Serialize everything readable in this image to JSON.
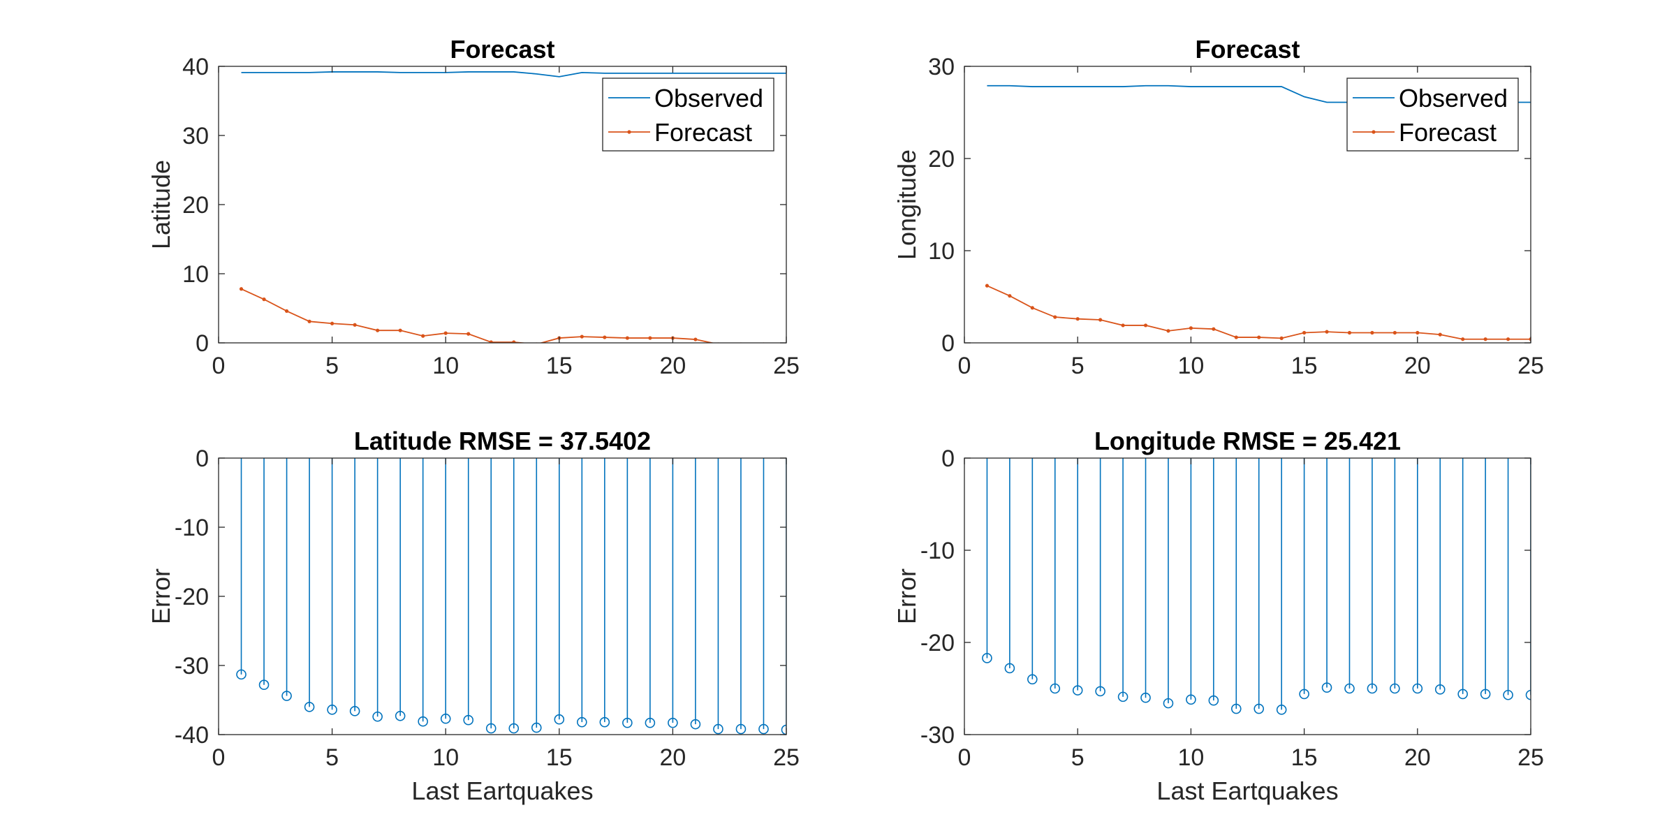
{
  "colors": {
    "observed": "#0072BD",
    "forecast": "#D95319",
    "axes": "#262626",
    "background": "#ffffff"
  },
  "chart_data": [
    {
      "type": "line",
      "title": "Forecast",
      "xlabel": "",
      "ylabel": "Latitude",
      "xlim": [
        0,
        25
      ],
      "ylim": [
        0,
        40
      ],
      "xticks": [
        0,
        5,
        10,
        15,
        20,
        25
      ],
      "yticks": [
        0,
        10,
        20,
        30,
        40
      ],
      "grid": false,
      "legend": {
        "placement": "top-right",
        "entries": [
          "Observed",
          "Forecast"
        ]
      },
      "x": [
        1,
        2,
        3,
        4,
        5,
        6,
        7,
        8,
        9,
        10,
        11,
        12,
        13,
        14,
        15,
        16,
        17,
        18,
        19,
        20,
        21,
        22,
        23,
        24,
        25
      ],
      "series": [
        {
          "name": "Observed",
          "style": "line",
          "values": [
            39.1,
            39.1,
            39.1,
            39.1,
            39.2,
            39.2,
            39.2,
            39.1,
            39.1,
            39.1,
            39.2,
            39.2,
            39.2,
            38.9,
            38.5,
            39.1,
            39.0,
            39.0,
            39.0,
            39.0,
            39.0,
            39.0,
            39.0,
            39.0,
            39.0
          ]
        },
        {
          "name": "Forecast",
          "style": "line-dot",
          "values": [
            7.8,
            6.3,
            4.6,
            3.1,
            2.8,
            2.6,
            1.8,
            1.8,
            1.0,
            1.4,
            1.3,
            0.1,
            0.1,
            -0.2,
            0.7,
            0.9,
            0.8,
            0.7,
            0.7,
            0.7,
            0.5,
            -0.2,
            -0.2,
            -0.2,
            -0.3
          ]
        }
      ]
    },
    {
      "type": "line",
      "title": "Forecast",
      "xlabel": "",
      "ylabel": "Longitude",
      "xlim": [
        0,
        25
      ],
      "ylim": [
        0,
        30
      ],
      "xticks": [
        0,
        5,
        10,
        15,
        20,
        25
      ],
      "yticks": [
        0,
        10,
        20,
        30
      ],
      "grid": false,
      "legend": {
        "placement": "top-right",
        "entries": [
          "Observed",
          "Forecast"
        ]
      },
      "x": [
        1,
        2,
        3,
        4,
        5,
        6,
        7,
        8,
        9,
        10,
        11,
        12,
        13,
        14,
        15,
        16,
        17,
        18,
        19,
        20,
        21,
        22,
        23,
        24,
        25
      ],
      "series": [
        {
          "name": "Observed",
          "style": "line",
          "values": [
            27.9,
            27.9,
            27.8,
            27.8,
            27.8,
            27.8,
            27.8,
            27.9,
            27.9,
            27.8,
            27.8,
            27.8,
            27.8,
            27.8,
            26.7,
            26.1,
            26.1,
            26.1,
            26.1,
            26.1,
            26.1,
            26.1,
            26.1,
            26.1,
            26.1
          ]
        },
        {
          "name": "Forecast",
          "style": "line-dot",
          "values": [
            6.2,
            5.1,
            3.8,
            2.8,
            2.6,
            2.5,
            1.9,
            1.9,
            1.3,
            1.6,
            1.5,
            0.6,
            0.6,
            0.5,
            1.1,
            1.2,
            1.1,
            1.1,
            1.1,
            1.1,
            0.9,
            0.4,
            0.4,
            0.4,
            0.4
          ]
        }
      ]
    },
    {
      "type": "stem",
      "title": "Latitude RMSE = 37.5402",
      "xlabel": "Last Eartquakes",
      "ylabel": "Error",
      "xlim": [
        0,
        25
      ],
      "ylim": [
        -40,
        0
      ],
      "xticks": [
        0,
        5,
        10,
        15,
        20,
        25
      ],
      "yticks": [
        0,
        -10,
        -20,
        -30,
        -40
      ],
      "grid": false,
      "x": [
        1,
        2,
        3,
        4,
        5,
        6,
        7,
        8,
        9,
        10,
        11,
        12,
        13,
        14,
        15,
        16,
        17,
        18,
        19,
        20,
        21,
        22,
        23,
        24,
        25
      ],
      "series": [
        {
          "style": "stem",
          "values": [
            -31.3,
            -32.8,
            -34.4,
            -36.0,
            -36.4,
            -36.6,
            -37.4,
            -37.3,
            -38.1,
            -37.7,
            -37.9,
            -39.1,
            -39.1,
            -39.0,
            -37.8,
            -38.2,
            -38.2,
            -38.3,
            -38.3,
            -38.3,
            -38.5,
            -39.2,
            -39.2,
            -39.2,
            -39.3
          ]
        }
      ]
    },
    {
      "type": "stem",
      "title": "Longitude RMSE = 25.421",
      "xlabel": "Last Eartquakes",
      "ylabel": "Error",
      "xlim": [
        0,
        25
      ],
      "ylim": [
        -30,
        0
      ],
      "xticks": [
        0,
        5,
        10,
        15,
        20,
        25
      ],
      "yticks": [
        0,
        -10,
        -20,
        -30
      ],
      "grid": false,
      "x": [
        1,
        2,
        3,
        4,
        5,
        6,
        7,
        8,
        9,
        10,
        11,
        12,
        13,
        14,
        15,
        16,
        17,
        18,
        19,
        20,
        21,
        22,
        23,
        24,
        25
      ],
      "series": [
        {
          "style": "stem",
          "values": [
            -21.7,
            -22.8,
            -24.0,
            -25.0,
            -25.2,
            -25.3,
            -25.9,
            -26.0,
            -26.6,
            -26.2,
            -26.3,
            -27.2,
            -27.2,
            -27.3,
            -25.6,
            -24.9,
            -25.0,
            -25.0,
            -25.0,
            -25.0,
            -25.1,
            -25.6,
            -25.6,
            -25.7,
            -25.7
          ]
        }
      ]
    }
  ]
}
